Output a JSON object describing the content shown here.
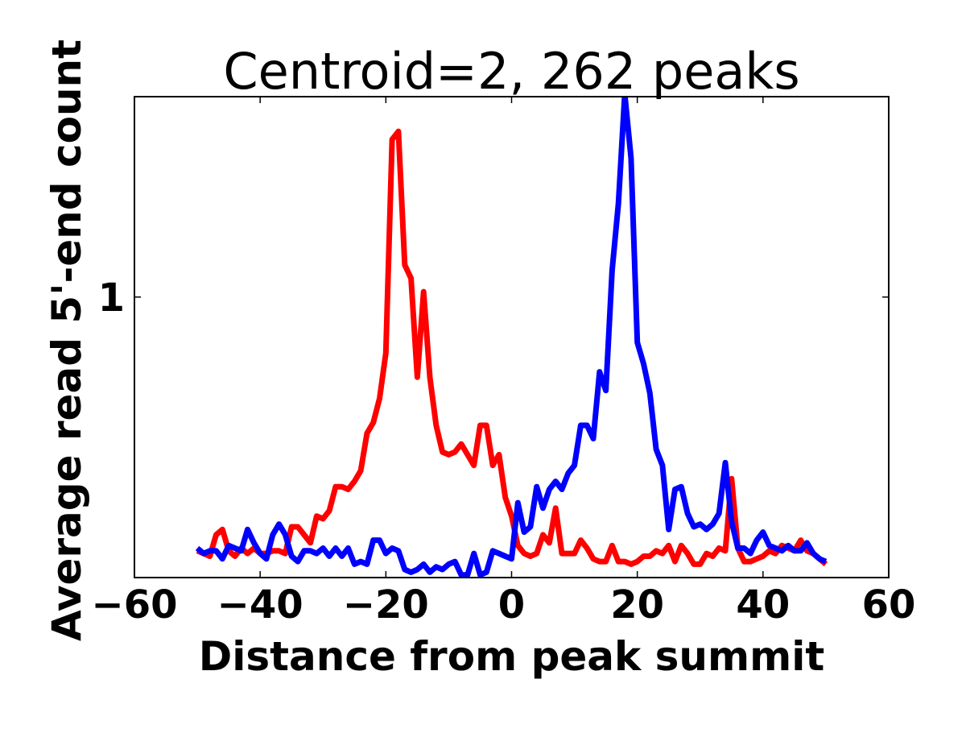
{
  "chart_data": {
    "type": "line",
    "title": "Centroid=2, 262 peaks",
    "xlabel": "Distance from peak summit",
    "ylabel": "Average read 5'-end count",
    "xlim": [
      -60,
      60
    ],
    "ylim": [
      -0.05,
      1.75
    ],
    "xticks": [
      -60,
      -40,
      -20,
      0,
      20,
      40,
      60
    ],
    "xtick_labels": [
      "−60",
      "−40",
      "−20",
      "0",
      "20",
      "40",
      "60"
    ],
    "yticks": [
      1
    ],
    "ytick_labels": [
      "1"
    ],
    "grid": false,
    "legend": "none",
    "x": [
      -50,
      -49,
      -48,
      -47,
      -46,
      -45,
      -44,
      -43,
      -42,
      -41,
      -40,
      -39,
      -38,
      -37,
      -36,
      -35,
      -34,
      -33,
      -32,
      -31,
      -30,
      -29,
      -28,
      -27,
      -26,
      -25,
      -24,
      -23,
      -22,
      -21,
      -20,
      -19,
      -18,
      -17,
      -16,
      -15,
      -14,
      -13,
      -12,
      -11,
      -10,
      -9,
      -8,
      -7,
      -6,
      -5,
      -4,
      -3,
      -2,
      -1,
      0,
      1,
      2,
      3,
      4,
      5,
      6,
      7,
      8,
      9,
      10,
      11,
      12,
      13,
      14,
      15,
      16,
      17,
      18,
      19,
      20,
      21,
      22,
      23,
      24,
      25,
      26,
      27,
      28,
      29,
      30,
      31,
      32,
      33,
      34,
      35,
      36,
      37,
      38,
      39,
      40,
      41,
      42,
      43,
      44,
      45,
      46,
      47,
      48,
      49,
      50
    ],
    "series": [
      {
        "color": "#ff0000",
        "values": [
          0.05,
          0.04,
          0.03,
          0.11,
          0.13,
          0.05,
          0.03,
          0.06,
          0.04,
          0.06,
          0.04,
          0.04,
          0.05,
          0.05,
          0.04,
          0.14,
          0.14,
          0.11,
          0.08,
          0.18,
          0.17,
          0.2,
          0.29,
          0.29,
          0.28,
          0.31,
          0.35,
          0.49,
          0.53,
          0.62,
          0.79,
          1.59,
          1.62,
          1.12,
          1.07,
          0.7,
          1.02,
          0.7,
          0.52,
          0.42,
          0.41,
          0.42,
          0.45,
          0.41,
          0.37,
          0.52,
          0.52,
          0.37,
          0.41,
          0.25,
          0.18,
          0.07,
          0.04,
          0.03,
          0.04,
          0.11,
          0.08,
          0.21,
          0.04,
          0.04,
          0.04,
          0.09,
          0.06,
          0.02,
          0.01,
          0.01,
          0.07,
          0.01,
          0.01,
          0.0,
          0.01,
          0.03,
          0.03,
          0.05,
          0.04,
          0.07,
          0.01,
          0.07,
          0.04,
          0.0,
          0.0,
          0.04,
          0.03,
          0.06,
          0.05,
          0.32,
          0.06,
          0.01,
          0.01,
          0.02,
          0.03,
          0.05,
          0.04,
          0.07,
          0.06,
          0.05,
          0.09,
          0.05,
          0.04,
          0.02,
          0.0
        ]
      },
      {
        "color": "#0000ff",
        "values": [
          0.06,
          0.04,
          0.05,
          0.05,
          0.02,
          0.07,
          0.06,
          0.05,
          0.13,
          0.08,
          0.04,
          0.02,
          0.11,
          0.15,
          0.11,
          0.03,
          0.01,
          0.05,
          0.05,
          0.04,
          0.06,
          0.03,
          0.06,
          0.03,
          0.06,
          0.0,
          0.01,
          0.0,
          0.09,
          0.09,
          0.04,
          0.06,
          0.05,
          -0.02,
          -0.03,
          -0.02,
          0.0,
          -0.03,
          -0.01,
          -0.02,
          0.0,
          0.01,
          -0.04,
          -0.04,
          0.04,
          -0.04,
          -0.03,
          0.05,
          0.04,
          0.03,
          0.02,
          0.23,
          0.12,
          0.14,
          0.29,
          0.21,
          0.28,
          0.31,
          0.28,
          0.34,
          0.37,
          0.52,
          0.52,
          0.47,
          0.72,
          0.65,
          1.1,
          1.35,
          1.76,
          1.52,
          0.83,
          0.75,
          0.64,
          0.43,
          0.37,
          0.13,
          0.28,
          0.29,
          0.19,
          0.14,
          0.15,
          0.13,
          0.15,
          0.19,
          0.38,
          0.16,
          0.06,
          0.06,
          0.04,
          0.09,
          0.12,
          0.07,
          0.06,
          0.05,
          0.07,
          0.05,
          0.05,
          0.08,
          0.04,
          0.02,
          0.01
        ]
      }
    ]
  }
}
